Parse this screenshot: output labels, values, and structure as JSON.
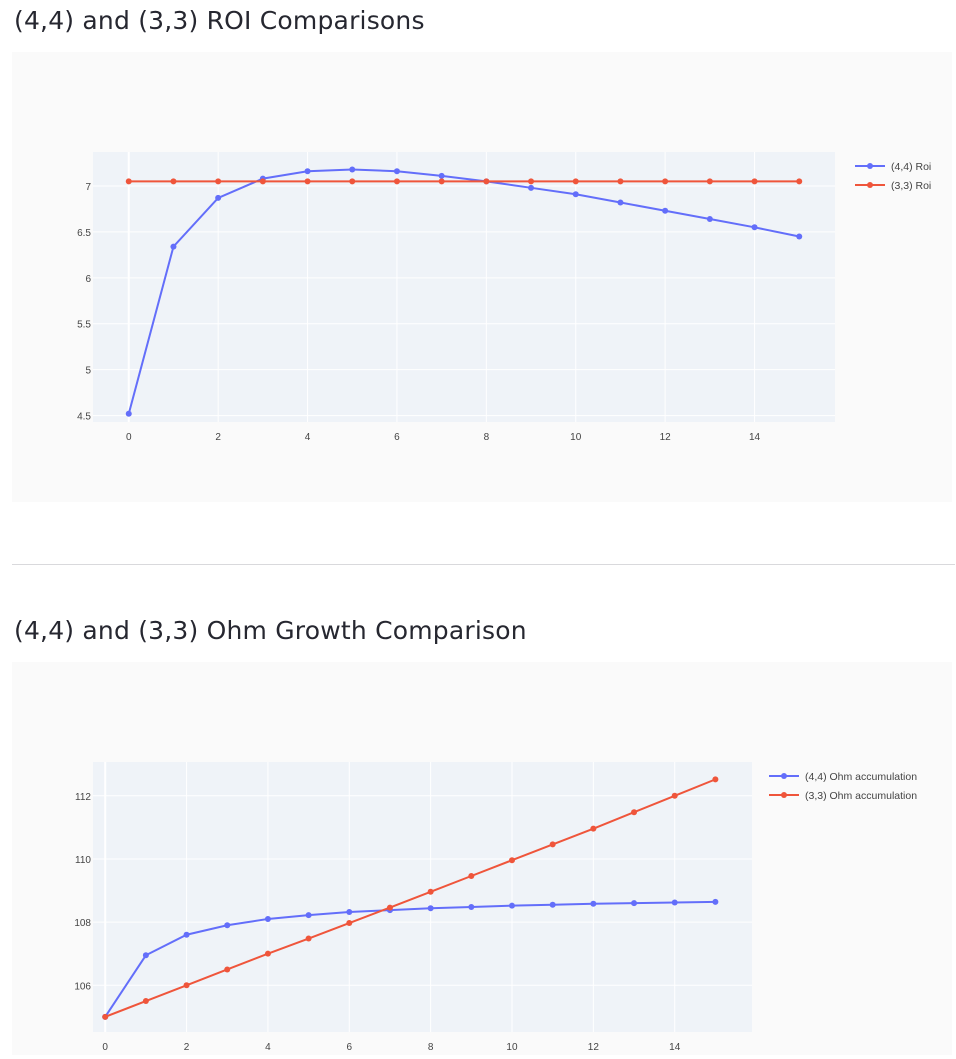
{
  "sections": [
    {
      "title": "(4,4) and (3,3) ROI Comparisons",
      "chart_data": {
        "type": "line",
        "title": "",
        "xlabel": "",
        "ylabel": "",
        "x": [
          0,
          1,
          2,
          3,
          4,
          5,
          6,
          7,
          8,
          9,
          10,
          11,
          12,
          13,
          14,
          15
        ],
        "x_ticks": [
          "0",
          "2",
          "4",
          "6",
          "8",
          "10",
          "12",
          "14"
        ],
        "y_ticks": [
          "4.5",
          "5",
          "5.5",
          "6",
          "6.5",
          "7"
        ],
        "xlim": [
          -0.8,
          15.8
        ],
        "ylim": [
          4.43,
          7.37
        ],
        "series": [
          {
            "name": "(4,4) Roi",
            "color": "#636efa",
            "values": [
              4.52,
              6.34,
              6.87,
              7.08,
              7.16,
              7.18,
              7.16,
              7.11,
              7.05,
              6.98,
              6.91,
              6.82,
              6.73,
              6.64,
              6.55,
              6.45
            ]
          },
          {
            "name": "(3,3) Roi",
            "color": "#ef553b",
            "values": [
              7.05,
              7.05,
              7.05,
              7.05,
              7.05,
              7.05,
              7.05,
              7.05,
              7.05,
              7.05,
              7.05,
              7.05,
              7.05,
              7.05,
              7.05,
              7.05
            ]
          }
        ],
        "legend": "top-right",
        "grid": true
      }
    },
    {
      "title": "(4,4) and (3,3) Ohm Growth Comparison",
      "chart_data": {
        "type": "line",
        "title": "",
        "xlabel": "",
        "ylabel": "",
        "x": [
          0,
          1,
          2,
          3,
          4,
          5,
          6,
          7,
          8,
          9,
          10,
          11,
          12,
          13,
          14,
          15
        ],
        "x_ticks": [
          "0",
          "2",
          "4",
          "6",
          "8",
          "10",
          "12",
          "14"
        ],
        "y_ticks": [
          "106",
          "108",
          "110",
          "112"
        ],
        "xlim": [
          -0.3,
          15.9
        ],
        "ylim": [
          104.52,
          113.07
        ],
        "series": [
          {
            "name": "(4,4) Ohm accumulation",
            "color": "#636efa",
            "values": [
              105.0,
              106.95,
              107.6,
              107.9,
              108.1,
              108.22,
              108.32,
              108.38,
              108.44,
              108.48,
              108.52,
              108.55,
              108.58,
              108.6,
              108.62,
              108.64
            ]
          },
          {
            "name": "(3,3) Ohm accumulation",
            "color": "#ef553b",
            "values": [
              105.0,
              105.5,
              106.0,
              106.5,
              107.0,
              107.48,
              107.97,
              108.46,
              108.96,
              109.46,
              109.96,
              110.46,
              110.96,
              111.48,
              112.0,
              112.52
            ]
          }
        ],
        "legend": "top-right",
        "grid": true
      }
    }
  ]
}
